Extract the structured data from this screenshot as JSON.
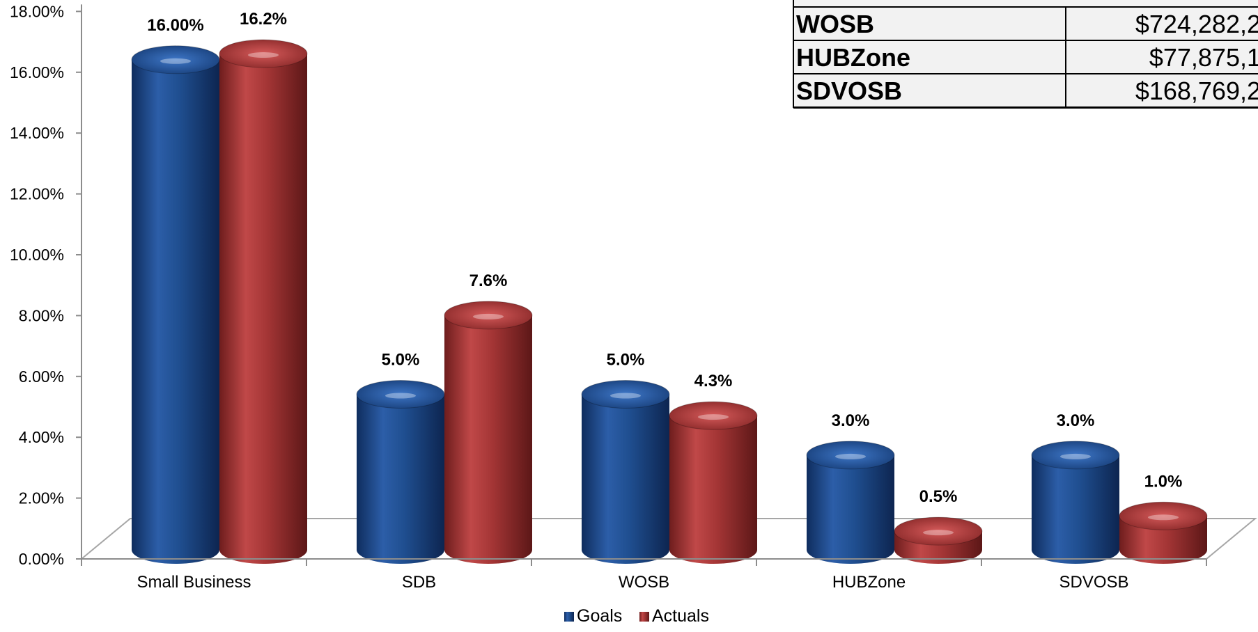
{
  "chart_data": {
    "type": "bar",
    "categories": [
      "Small Business",
      "SDB",
      "WOSB",
      "HUBZone",
      "SDVOSB"
    ],
    "series": [
      {
        "name": "Goals",
        "values": [
          16.0,
          5.0,
          5.0,
          3.0,
          3.0
        ],
        "labels": [
          "16.00%",
          "5.0%",
          "5.0%",
          "3.0%",
          "3.0%"
        ],
        "color": "#1f4e8f"
      },
      {
        "name": "Actuals",
        "values": [
          16.2,
          7.6,
          4.3,
          0.5,
          1.0
        ],
        "labels": [
          "16.2%",
          "7.6%",
          "4.3%",
          "0.5%",
          "1.0%"
        ],
        "color": "#a33535"
      }
    ],
    "y_ticks": [
      "0.00%",
      "2.00%",
      "4.00%",
      "6.00%",
      "8.00%",
      "10.00%",
      "12.00%",
      "14.00%",
      "16.00%",
      "18.00%"
    ],
    "ylim": [
      0,
      18
    ],
    "grid": false,
    "legend_position": "bottom",
    "style": "3d-cylinder"
  },
  "summary_table": {
    "rows": [
      {
        "label": "WOSB",
        "value": "$724,282,2"
      },
      {
        "label": "HUBZone",
        "value": "$77,875,1"
      },
      {
        "label": "SDVOSB",
        "value": "$168,769,2"
      }
    ]
  }
}
